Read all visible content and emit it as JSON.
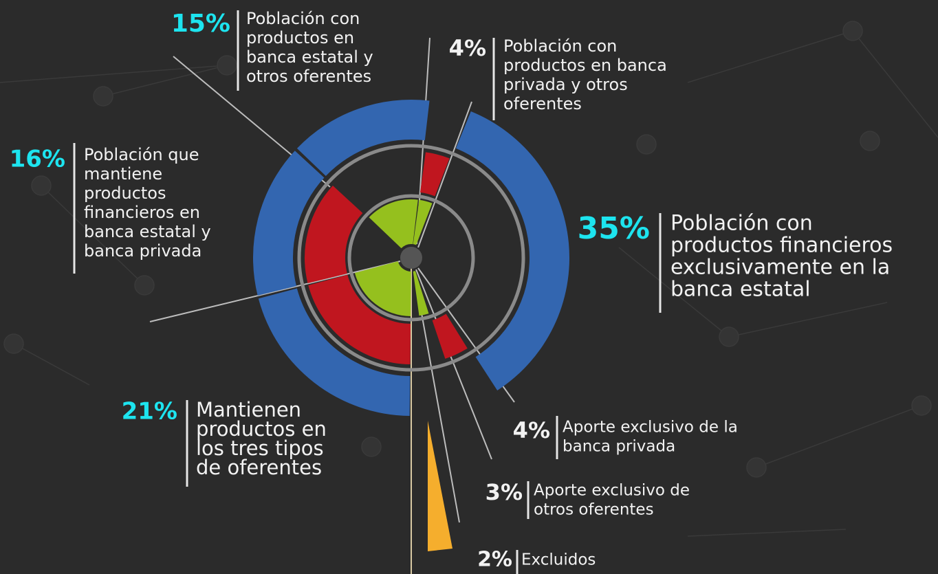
{
  "chart_data": {
    "type": "radial",
    "categories": [
      [
        "Mantienen",
        "productos en",
        "los tres tipos",
        "de oferentes"
      ],
      [
        "Población que",
        "mantiene",
        "productos",
        "financieros en",
        "banca estatal y",
        "banca privada"
      ],
      [
        "Población con",
        "productos en",
        "banca estatal y",
        "otros oferentes"
      ],
      [
        "Población con",
        "productos en banca",
        "privada y otros",
        "oferentes"
      ],
      [
        "Población con",
        "productos financieros",
        "exclusivamente en la",
        "banca estatal"
      ],
      [
        "Aporte exclusivo de la",
        "banca privada"
      ],
      [
        "Aporte exclusivo de",
        "otros oferentes"
      ],
      [
        "Excluidos"
      ]
    ],
    "values": [
      21,
      16,
      15,
      4,
      35,
      4,
      3,
      2
    ],
    "value_labels": [
      "21%",
      "16%",
      "15%",
      "4%",
      "35%",
      "4%",
      "3%",
      "2%"
    ],
    "colors": [
      "#3366b0",
      "#c0161f",
      "#95c01e",
      "#f5ae2d"
    ]
  }
}
